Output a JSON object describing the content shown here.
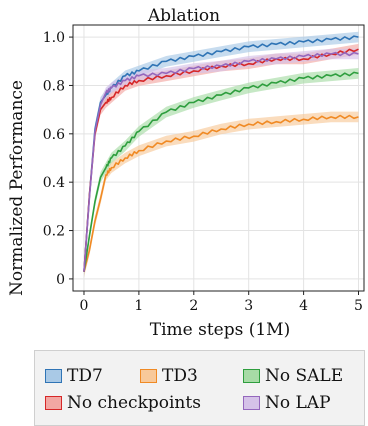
{
  "chart_data": {
    "type": "line",
    "title": "Ablation",
    "xlabel": "Time steps (1M)",
    "ylabel": "Normalized Performance",
    "xlim": [
      -0.2,
      5.1
    ],
    "ylim": [
      -0.05,
      1.05
    ],
    "xticks": [
      0,
      1,
      2,
      3,
      4,
      5
    ],
    "yticks": [
      0,
      0.2,
      0.4,
      0.6,
      0.8,
      1.0
    ],
    "ytick_labels": [
      "0",
      "0.2",
      "0.4",
      "0.6",
      "0.8",
      "1.0"
    ],
    "grid": true,
    "legend_position": "bottom",
    "x": [
      0,
      0.1,
      0.2,
      0.3,
      0.4,
      0.5,
      0.75,
      1.0,
      1.5,
      2.0,
      2.5,
      3.0,
      3.5,
      4.0,
      4.5,
      5.0
    ],
    "series": [
      {
        "name": "TD7",
        "color": "#2f74b5",
        "fill": "#a9c9e6",
        "values": [
          0.03,
          0.35,
          0.62,
          0.73,
          0.76,
          0.79,
          0.84,
          0.86,
          0.9,
          0.92,
          0.94,
          0.96,
          0.97,
          0.98,
          0.99,
          1.0
        ]
      },
      {
        "name": "TD3",
        "color": "#f08a24",
        "fill": "#f8c99a",
        "values": [
          0.03,
          0.12,
          0.24,
          0.33,
          0.43,
          0.46,
          0.5,
          0.53,
          0.57,
          0.59,
          0.62,
          0.64,
          0.65,
          0.66,
          0.67,
          0.67
        ]
      },
      {
        "name": "No SALE",
        "color": "#2e9e3e",
        "fill": "#a7dba6",
        "values": [
          0.03,
          0.18,
          0.32,
          0.42,
          0.46,
          0.5,
          0.55,
          0.61,
          0.69,
          0.73,
          0.76,
          0.79,
          0.81,
          0.83,
          0.84,
          0.85
        ]
      },
      {
        "name": "No checkpoints",
        "color": "#d62728",
        "fill": "#f2a7a3",
        "values": [
          0.03,
          0.35,
          0.6,
          0.7,
          0.73,
          0.75,
          0.8,
          0.82,
          0.84,
          0.86,
          0.88,
          0.89,
          0.91,
          0.91,
          0.93,
          0.95
        ]
      },
      {
        "name": "No LAP",
        "color": "#9467bd",
        "fill": "#d5c2e8",
        "values": [
          0.03,
          0.34,
          0.61,
          0.72,
          0.77,
          0.79,
          0.82,
          0.84,
          0.85,
          0.87,
          0.88,
          0.9,
          0.91,
          0.92,
          0.93,
          0.93
        ]
      }
    ]
  },
  "legend": {
    "items": [
      {
        "label": "TD7",
        "border": "#2f74b5",
        "fill": "#a9c9e6"
      },
      {
        "label": "TD3",
        "border": "#f08a24",
        "fill": "#f8c99a"
      },
      {
        "label": "No SALE",
        "border": "#2e9e3e",
        "fill": "#a7dba6"
      },
      {
        "label": "No checkpoints",
        "border": "#d62728",
        "fill": "#f2a7a3"
      },
      {
        "label": "No LAP",
        "border": "#9467bd",
        "fill": "#d5c2e8"
      }
    ]
  }
}
